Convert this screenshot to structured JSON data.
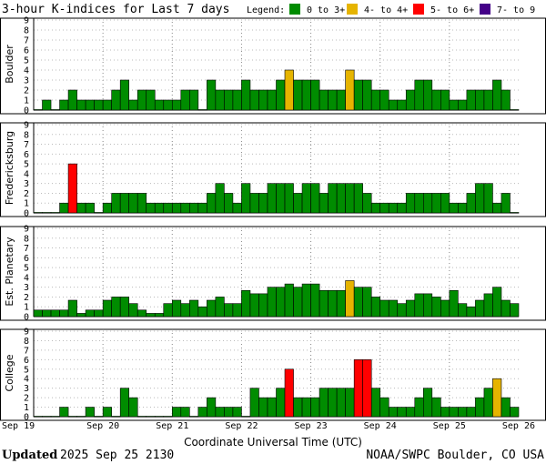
{
  "title": "3-hour K-indices for Last 7 days",
  "legend": {
    "label": "Legend:",
    "entries": [
      {
        "label": "0 to 3+",
        "color": "#008c00"
      },
      {
        "label": "4- to 4+",
        "color": "#e6b400"
      },
      {
        "label": "5- to 6+",
        "color": "#ff0000"
      },
      {
        "label": "7- to 9",
        "color": "#440088"
      }
    ]
  },
  "footer": {
    "updated_label": "Updated",
    "updated_value": "2025 Sep 25 2130",
    "source": "NOAA/SWPC Boulder, CO USA"
  },
  "chart_data": {
    "type": "bar",
    "xlabel": "Coordinate Universal Time (UTC)",
    "x_ticks": [
      "Sep 19",
      "Sep 20",
      "Sep 21",
      "Sep 22",
      "Sep 23",
      "Sep 24",
      "Sep 25",
      "Sep 26"
    ],
    "y_ticks": [
      "0",
      "1",
      "2",
      "3",
      "4",
      "5",
      "6",
      "7",
      "8",
      "9"
    ],
    "ylim": [
      0,
      9
    ],
    "grid": true,
    "colors": {
      "quiet": "#008c00",
      "active": "#e6b400",
      "storm": "#ff0000",
      "severe": "#440088",
      "edge": "#000000"
    },
    "series": [
      {
        "name": "Boulder",
        "values": [
          0.05,
          1,
          0.05,
          1,
          2,
          1,
          1,
          1,
          1,
          2,
          3,
          1,
          2,
          2,
          1,
          1,
          1,
          2,
          2,
          0.05,
          3,
          2,
          2,
          2,
          3,
          2,
          2,
          2,
          3,
          4,
          3,
          3,
          3,
          2,
          2,
          2,
          4,
          3,
          3,
          2,
          2,
          1,
          1,
          2,
          3,
          3,
          2,
          2,
          1,
          1,
          2,
          2,
          2,
          3,
          2,
          0.05
        ]
      },
      {
        "name": "Fredericksburg",
        "values": [
          0.05,
          0.05,
          0.05,
          1,
          5,
          1,
          1,
          0.05,
          1,
          2,
          2,
          2,
          2,
          1,
          1,
          1,
          1,
          1,
          1,
          1,
          2,
          3,
          2,
          1,
          3,
          2,
          2,
          3,
          3,
          3,
          2,
          3,
          3,
          2,
          3,
          3,
          3,
          3,
          2,
          1,
          1,
          1,
          1,
          2,
          2,
          2,
          2,
          2,
          1,
          1,
          2,
          3,
          3,
          1,
          2,
          0.05
        ]
      },
      {
        "name": "Est. Planetary",
        "values": [
          0.67,
          0.67,
          0.67,
          0.67,
          1.67,
          0.33,
          0.67,
          0.67,
          1.67,
          2,
          2,
          1.33,
          0.67,
          0.33,
          0.33,
          1.33,
          1.67,
          1.33,
          1.67,
          1.0,
          1.67,
          2,
          1.33,
          1.33,
          2.67,
          2.33,
          2.33,
          3,
          3,
          3.33,
          3,
          3.33,
          3.33,
          2.67,
          2.67,
          2.67,
          3.67,
          3,
          3,
          2,
          1.67,
          1.67,
          1.33,
          1.67,
          2.33,
          2.33,
          2,
          1.67,
          2.67,
          1.33,
          1,
          1.67,
          2.33,
          3,
          1.67,
          1.33
        ]
      },
      {
        "name": "College",
        "values": [
          0.05,
          0.05,
          0.05,
          1,
          0.05,
          0.05,
          1,
          0.05,
          1,
          0.05,
          3,
          2,
          0.05,
          0.05,
          0.05,
          0.05,
          1,
          1,
          0.05,
          1,
          2,
          1,
          1,
          1,
          0.05,
          3,
          2,
          2,
          3,
          5,
          2,
          2,
          2,
          3,
          3,
          3,
          3,
          6,
          6,
          3,
          2,
          1,
          1,
          1,
          2,
          3,
          2,
          1,
          1,
          1,
          1,
          2,
          3,
          4,
          2,
          1
        ]
      }
    ]
  }
}
